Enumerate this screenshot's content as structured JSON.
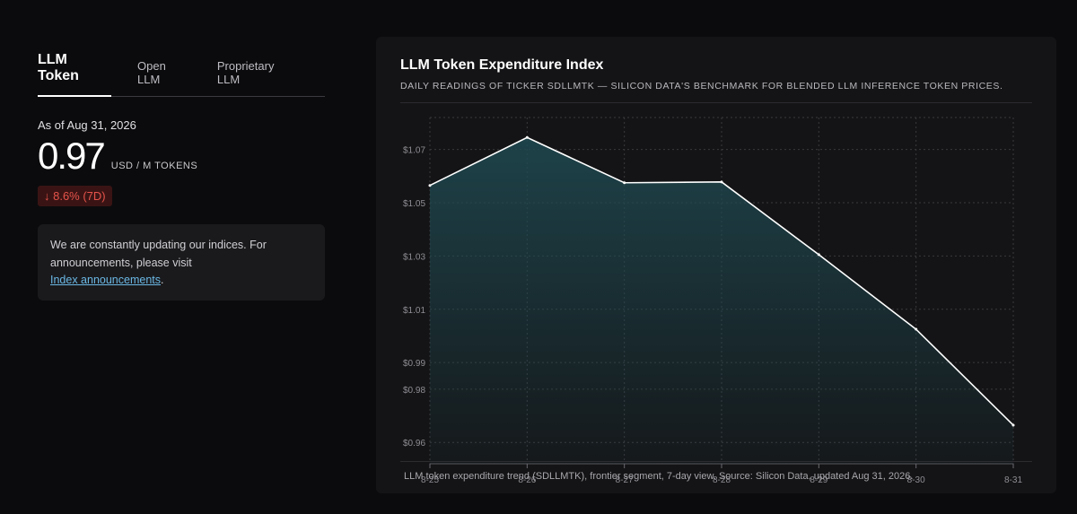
{
  "tabs": [
    {
      "label": "LLM Token",
      "active": true
    },
    {
      "label": "Open LLM",
      "active": false
    },
    {
      "label": "Proprietary LLM",
      "active": false
    }
  ],
  "summary": {
    "as_of": "As of Aug 31, 2026",
    "value": "0.97",
    "unit": "USD / M TOKENS",
    "change": "↓ 8.6% (7D)",
    "change_color": "#e5534b"
  },
  "notice": {
    "text": "We are constantly updating our indices. For announcements, please visit",
    "link": "Index announcements",
    "tail": "."
  },
  "card": {
    "title": "LLM Token Expenditure Index",
    "subtitle": "DAILY READINGS OF TICKER SDLLMTK — SILICON DATA'S BENCHMARK FOR BLENDED LLM INFERENCE TOKEN PRICES.",
    "caption": "LLM token expenditure trend (SDLLMTK), frontier segment, 7-day view. Source: Silicon Data, updated Aug 31, 2026."
  },
  "chart_data": {
    "type": "area",
    "x": [
      "8-25",
      "8-26",
      "8-27",
      "8-28",
      "8-29",
      "8-30",
      "8-31"
    ],
    "values": [
      1.0565,
      1.0745,
      1.0575,
      1.0578,
      1.0305,
      1.0025,
      0.9665
    ],
    "ytick_labels": [
      {
        "value": 1.07,
        "label": "$1.07"
      },
      {
        "value": 1.05,
        "label": "$1.05"
      },
      {
        "value": 1.03,
        "label": "$1.03"
      },
      {
        "value": 1.01,
        "label": "$1.01"
      },
      {
        "value": 0.99,
        "label": "$0.99"
      },
      {
        "value": 0.98,
        "label": "$0.98"
      },
      {
        "value": 0.96,
        "label": "$0.96"
      }
    ],
    "ylim": [
      0.952,
      1.082
    ],
    "grid": true,
    "line_color": "#ffffff",
    "fill_color": "#1f4a52",
    "grid_color": "#3a3a3e"
  }
}
